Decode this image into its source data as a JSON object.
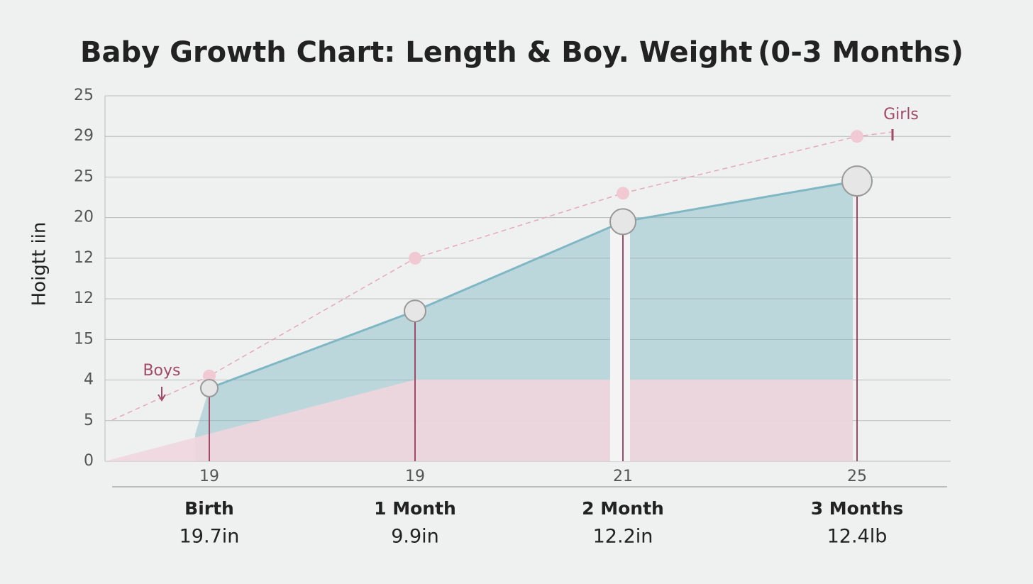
{
  "chart_data": {
    "type": "area",
    "title": "Baby Growth Chart: Length & Boy. Weight",
    "period": "(0-3 Months)",
    "ylabel": "Hoigtt iin",
    "categories": [
      "Birth",
      "1 Month",
      "2 Month",
      "3 Months"
    ],
    "category_notes": [
      "19.7in",
      "9.9in",
      "12.2in",
      "12.4lb"
    ],
    "top_labels": [
      "19",
      "19",
      "21",
      "25"
    ],
    "series": [
      {
        "name": "Boys",
        "color": "#7fb8c4",
        "values": [
          1.8,
          3.7,
          5.9,
          6.9
        ]
      },
      {
        "name": "Girls",
        "color": "#e4a9b8",
        "values": [
          2.1,
          5.0,
          6.6,
          8.0
        ]
      }
    ],
    "ylim": [
      0,
      9
    ],
    "yticks": [
      {
        "value": 0,
        "label": "0"
      },
      {
        "value": 1,
        "label": "5"
      },
      {
        "value": 2,
        "label": "4"
      },
      {
        "value": 3,
        "label": "15"
      },
      {
        "value": 4,
        "label": "12"
      },
      {
        "value": 5,
        "label": "12"
      },
      {
        "value": 6,
        "label": "20"
      },
      {
        "value": 7,
        "label": "25"
      },
      {
        "value": 8,
        "label": "29"
      },
      {
        "value": 9,
        "label": "25"
      }
    ],
    "grid": true
  }
}
